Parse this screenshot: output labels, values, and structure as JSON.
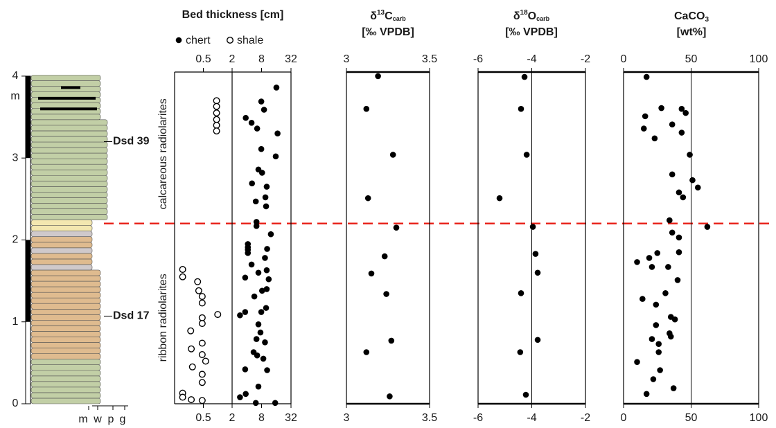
{
  "chart_data": [
    {
      "type": "lithology",
      "ylabel": "m",
      "ylim": [
        0,
        4.05
      ],
      "yticks": [
        0,
        1,
        2,
        3,
        4
      ],
      "samples": [
        {
          "name": "Dsd 39",
          "y": 3.2
        },
        {
          "name": "Dsd 17",
          "y": 1.07
        }
      ],
      "texture_codes": [
        "m",
        "w",
        "p",
        "g"
      ],
      "boundary": 2.2,
      "boundary_color": "#e8231b"
    },
    {
      "type": "scatter",
      "title": "Bed thickness [cm]",
      "annotations": [
        "calcareous radiolarites",
        "ribbon radiolarites"
      ],
      "ylim": [
        0,
        4.05
      ],
      "xlim": [
        0,
        1
      ],
      "xticks": [
        0.5
      ],
      "x2lim": [
        2,
        32
      ],
      "x2ticks": [
        2,
        8,
        32
      ],
      "x2scale": "log",
      "series": [
        {
          "name": "chert",
          "marker": "filled",
          "color": "#000000",
          "axis": "x2",
          "x": [
            16.1,
            7.9,
            9.0,
            3.8,
            5.0,
            6.5,
            17,
            7.9,
            15.6,
            6.9,
            8.2,
            5.1,
            10.2,
            9.6,
            6.1,
            9.9,
            6.3,
            6.3,
            12.4,
            4.2,
            4.2,
            4.2,
            4.2,
            10.4,
            9.4,
            5.0,
            10.2,
            6.9,
            3.7,
            11.2,
            10.2,
            8.2,
            5.7,
            9.9,
            3.7,
            7.9,
            2.9,
            6.9,
            7.6,
            6.3,
            9.4,
            5.5,
            6.5,
            8.7,
            3.7,
            10.4,
            6.9,
            3.8,
            2.9,
            6.1,
            15.2
          ],
          "y": [
            3.86,
            3.69,
            3.59,
            3.49,
            3.43,
            3.36,
            3.3,
            3.11,
            3.02,
            2.86,
            2.82,
            2.69,
            2.65,
            2.52,
            2.47,
            2.41,
            2.22,
            2.17,
            2.07,
            1.95,
            1.91,
            1.88,
            1.84,
            1.89,
            1.78,
            1.7,
            1.63,
            1.6,
            1.54,
            1.52,
            1.4,
            1.38,
            1.31,
            1.17,
            1.12,
            1.12,
            1.08,
            0.97,
            0.87,
            0.79,
            0.75,
            0.63,
            0.59,
            0.55,
            0.42,
            0.41,
            0.21,
            0.12,
            0.08,
            0.01,
            0.01
          ]
        },
        {
          "name": "shale",
          "marker": "open",
          "color": "#000000",
          "axis": "x",
          "x": [
            0.73,
            0.73,
            0.73,
            0.73,
            0.73,
            0.73,
            0.14,
            0.14,
            0.4,
            0.42,
            0.48,
            0.48,
            0.75,
            0.48,
            0.48,
            0.28,
            0.48,
            0.29,
            0.48,
            0.54,
            0.31,
            0.48,
            0.48,
            0.14,
            0.14,
            0.29,
            0.48
          ],
          "y": [
            3.7,
            3.63,
            3.55,
            3.47,
            3.4,
            3.33,
            1.64,
            1.55,
            1.49,
            1.38,
            1.31,
            1.23,
            1.09,
            1.05,
            0.98,
            0.89,
            0.74,
            0.67,
            0.6,
            0.52,
            0.45,
            0.36,
            0.26,
            0.13,
            0.08,
            0.05,
            0.04
          ]
        }
      ]
    },
    {
      "type": "scatter",
      "title": [
        "δ",
        "13",
        "C",
        "carb"
      ],
      "subtitle": "[‰ VPDB]",
      "ylim": [
        0,
        4.05
      ],
      "xlim": [
        3,
        3.5
      ],
      "xticks": [
        3,
        3.5
      ],
      "color": "#000000",
      "x": [
        3.19,
        3.12,
        3.28,
        3.13,
        3.3,
        3.23,
        3.15,
        3.24,
        3.27,
        3.12,
        3.26
      ],
      "y": [
        4.0,
        3.6,
        3.04,
        2.51,
        2.15,
        1.8,
        1.59,
        1.34,
        0.77,
        0.63,
        0.09
      ]
    },
    {
      "type": "scatter",
      "title": [
        "δ",
        "18",
        "O",
        "carb"
      ],
      "subtitle": "[‰ VPDB]",
      "ylim": [
        0,
        4.05
      ],
      "xlim": [
        -6,
        -2
      ],
      "xticks": [
        -6,
        -4,
        -2
      ],
      "reference_line": -4,
      "color": "#000000",
      "x": [
        -4.27,
        -4.4,
        -4.19,
        -5.2,
        -3.96,
        -3.86,
        -3.78,
        -4.4,
        -3.78,
        -4.43,
        -4.22
      ],
      "y": [
        3.99,
        3.6,
        3.04,
        2.51,
        2.16,
        1.83,
        1.6,
        1.35,
        0.78,
        0.63,
        0.11
      ]
    },
    {
      "type": "scatter",
      "title": [
        "CaCO",
        "3"
      ],
      "subtitle": "[wt%]",
      "ylim": [
        0,
        4.05
      ],
      "xlim": [
        0,
        100
      ],
      "xticks": [
        0,
        50,
        100
      ],
      "reference_line": 50,
      "color": "#000000",
      "x": [
        17,
        28,
        43,
        46,
        16,
        15,
        36,
        43,
        23,
        49,
        36,
        51,
        55,
        41,
        44,
        34,
        62,
        36,
        41,
        41,
        25,
        19,
        10,
        21,
        33,
        40,
        31,
        14,
        24,
        35,
        38,
        24,
        34,
        35,
        21,
        26,
        26,
        10,
        27,
        22,
        37,
        17
      ],
      "y": [
        3.99,
        3.61,
        3.6,
        3.55,
        3.51,
        3.36,
        3.41,
        3.31,
        3.24,
        3.04,
        2.8,
        2.73,
        2.64,
        2.58,
        2.52,
        2.24,
        2.16,
        2.09,
        2.03,
        1.85,
        1.84,
        1.78,
        1.73,
        1.67,
        1.67,
        1.51,
        1.35,
        1.28,
        1.21,
        1.06,
        1.03,
        0.96,
        0.86,
        0.82,
        0.79,
        0.73,
        0.63,
        0.51,
        0.41,
        0.3,
        0.19,
        0.12
      ]
    }
  ]
}
